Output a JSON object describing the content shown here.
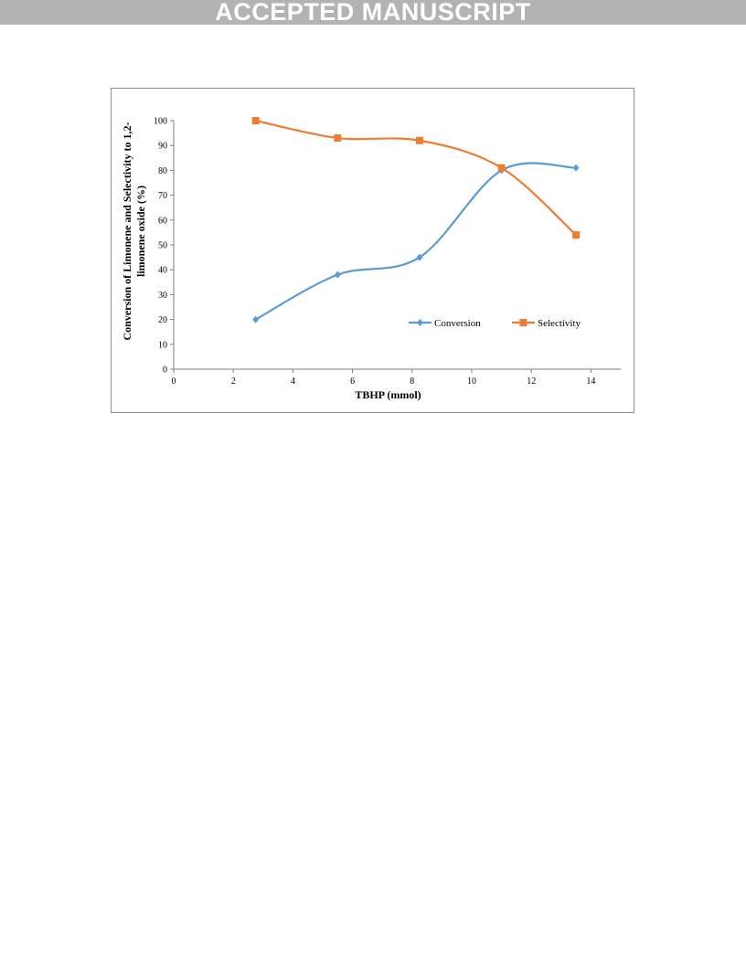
{
  "banner": {
    "text": "ACCEPTED MANUSCRIPT"
  },
  "chart_data": {
    "type": "line",
    "xlabel": "TBHP (mmol)",
    "ylabel_lines": [
      "Conversion of Limonene and Selectivity to 1,2-",
      "limonene oxide (%)"
    ],
    "xlim": [
      0,
      15
    ],
    "ylim": [
      0,
      100
    ],
    "xticks": [
      0,
      2,
      4,
      6,
      8,
      10,
      12,
      14
    ],
    "yticks": [
      0,
      10,
      20,
      30,
      40,
      50,
      60,
      70,
      80,
      90,
      100
    ],
    "grid": false,
    "legend_position": "lower-right",
    "series": [
      {
        "name": "Conversion",
        "color": "#5b9bd5",
        "marker": "diamond",
        "smooth": true,
        "x": [
          2.75,
          5.5,
          8.25,
          11.0,
          13.5
        ],
        "y": [
          20,
          38,
          45,
          80,
          81
        ]
      },
      {
        "name": "Selectivity",
        "color": "#ed7d31",
        "marker": "square",
        "smooth": true,
        "x": [
          2.75,
          5.5,
          8.25,
          11.0,
          13.5
        ],
        "y": [
          100,
          93,
          92,
          81,
          54
        ]
      }
    ]
  }
}
